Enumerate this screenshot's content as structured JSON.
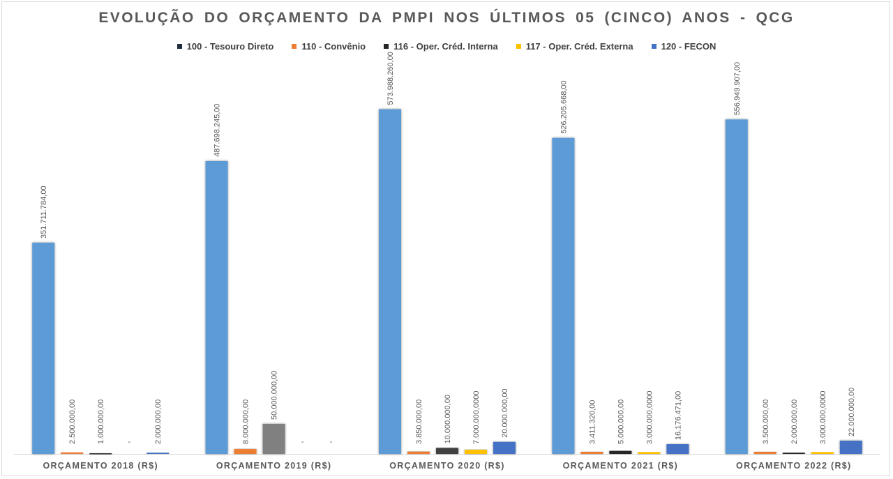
{
  "chart_data": {
    "type": "bar",
    "title": "EVOLUÇÃO DO ORÇAMENTO DA PMPI NOS ÚLTIMOS 05 (CINCO) ANOS - QCG",
    "categories": [
      "ORÇAMENTO 2018 (R$)",
      "ORÇAMENTO 2019 (R$)",
      "ORÇAMENTO 2020 (R$)",
      "ORÇAMENTO 2021 (R$)",
      "ORÇAMENTO 2022 (R$)"
    ],
    "legend_position": "top",
    "grid": false,
    "ylim": [
      0,
      620000000
    ],
    "bars_per_category": [
      [
        {
          "value": 351711784,
          "label": "351.711.784,00",
          "color": "#5b9bd5"
        },
        {
          "value": 2500000,
          "label": "2.500.000,00",
          "color": "#ed7d31"
        },
        {
          "value": 1000000,
          "label": "1.000.000,00",
          "color": "#262626"
        },
        {
          "value": 0,
          "label": "",
          "color": "#ffc000"
        },
        {
          "value": 2000000,
          "label": "2.000.000,00",
          "color": "#4472c4"
        }
      ],
      [
        {
          "value": 487698245,
          "label": "487.698.245,00",
          "color": "#5b9bd5"
        },
        {
          "value": 8000000,
          "label": "8.000.000,00",
          "color": "#ed7d31"
        },
        {
          "value": 50000000,
          "label": "50.000.000,00",
          "color": "#808080"
        },
        {
          "value": 0,
          "label": "",
          "color": "#ffc000"
        },
        {
          "value": 0,
          "label": "",
          "color": "#4472c4"
        }
      ],
      [
        {
          "value": 573988260,
          "label": "573.988.260,00",
          "color": "#5b9bd5"
        },
        {
          "value": 3850000,
          "label": "3.850.000,00",
          "color": "#ed7d31"
        },
        {
          "value": 10000000,
          "label": "10.000.000,00",
          "color": "#404040"
        },
        {
          "value": 7000000,
          "label": "7.000.000,0000",
          "color": "#ffc000"
        },
        {
          "value": 20000000,
          "label": "20.000.000,00",
          "color": "#4472c4"
        }
      ],
      [
        {
          "value": 526205668,
          "label": "526.205.668,00",
          "color": "#5b9bd5"
        },
        {
          "value": 3411320,
          "label": "3.411.320,00",
          "color": "#ed7d31"
        },
        {
          "value": 5000000,
          "label": "5.000.000,00",
          "color": "#262626"
        },
        {
          "value": 3000000,
          "label": "3.000.000,0000",
          "color": "#ffc000"
        },
        {
          "value": 16176471,
          "label": "16.176.471,00",
          "color": "#4472c4"
        }
      ],
      [
        {
          "value": 556949907,
          "label": "556.949.907,00",
          "color": "#5b9bd5"
        },
        {
          "value": 3500000,
          "label": "3.500.000,00",
          "color": "#ed7d31"
        },
        {
          "value": 2000000,
          "label": "2.000.000,00",
          "color": "#262626"
        },
        {
          "value": 3000000,
          "label": "3.000.000,0000",
          "color": "#ffc000"
        },
        {
          "value": 22000000,
          "label": "22.000.000,00",
          "color": "#4472c4"
        }
      ]
    ],
    "series": [
      {
        "name": "100 - Tesouro Direto",
        "color": "#1f2d3d"
      },
      {
        "name": "110 - Convênio",
        "color": "#ed7d31"
      },
      {
        "name": "116 - Oper. Créd. Interna",
        "color": "#262626"
      },
      {
        "name": "117 - Oper. Créd. Externa",
        "color": "#ffc000"
      },
      {
        "name": "120 - FECON",
        "color": "#4472c4"
      }
    ]
  }
}
